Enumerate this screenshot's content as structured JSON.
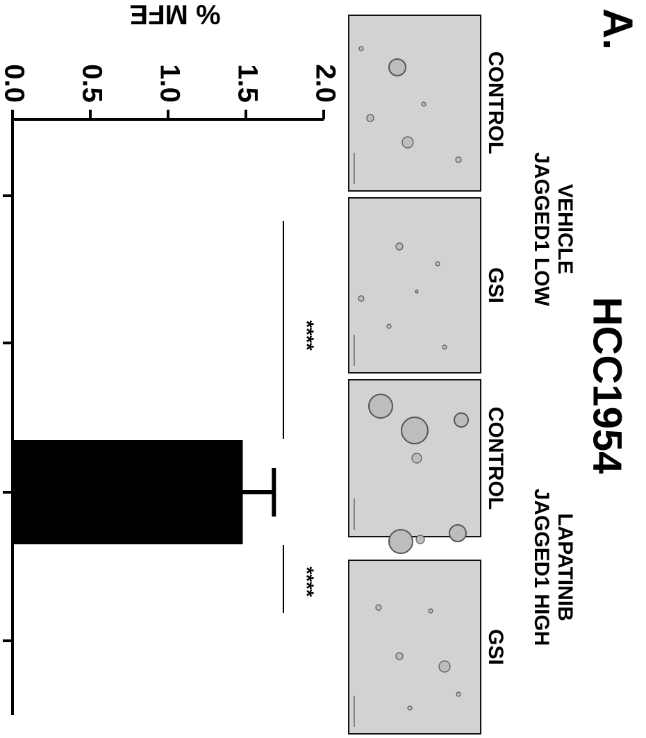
{
  "figure": {
    "panel_label": "A.",
    "cell_line": "HCC1954",
    "group_headers": [
      {
        "lines": [
          "VEHICLE",
          "JAGGED1 LOW"
        ]
      },
      {
        "lines": [
          "LAPATINIB",
          "JAGGED1 HIGH"
        ]
      }
    ],
    "conditions": [
      "CONTROL",
      "GSI",
      "CONTROL",
      "GSI"
    ],
    "significance": [
      "****",
      "****"
    ]
  },
  "chart_data": {
    "type": "bar",
    "orientation": "horizontal",
    "categories": [
      "VEHICLE CONTROL",
      "VEHICLE GSI",
      "LAPATINIB CONTROL",
      "LAPATINIB GSI"
    ],
    "series": [
      {
        "values": [
          0.0,
          0.0,
          1.48,
          0.0
        ],
        "error": [
          0,
          0,
          0.2,
          0
        ]
      }
    ],
    "ylabel": "% MFE",
    "ylim": [
      0,
      2.0
    ],
    "yticks": [
      "0.0",
      "0.5",
      "1.0",
      "1.5",
      "2.0"
    ],
    "bar_color": "#000000",
    "grid": false,
    "legend": "none"
  }
}
